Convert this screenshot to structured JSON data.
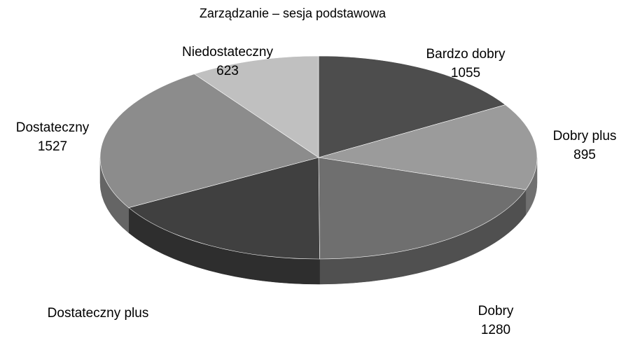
{
  "chart_data": {
    "type": "pie3d",
    "title": "Zarządzanie – sesja podstawowa",
    "categories": [
      "Bardzo dobry",
      "Dobry plus",
      "Dobry",
      "Dostateczny plus",
      "Dostateczny",
      "Niedostateczny"
    ],
    "values": [
      1055,
      895,
      1280,
      1090,
      1527,
      623
    ],
    "value_labels": [
      "1055",
      "895",
      "1280",
      null,
      "1527",
      "623"
    ],
    "colors": [
      "#4d4d4d",
      "#9b9b9b",
      "#6f6f6f",
      "#404040",
      "#8c8c8c",
      "#c0c0c0"
    ]
  }
}
